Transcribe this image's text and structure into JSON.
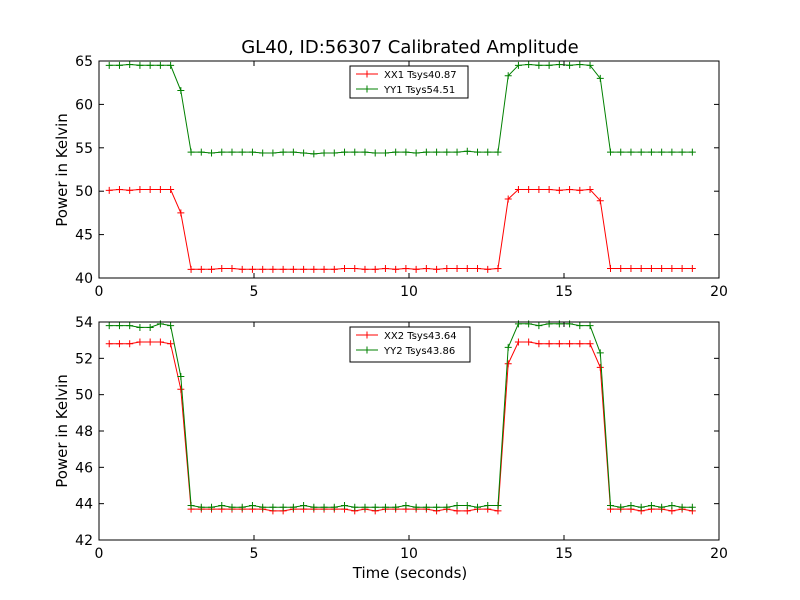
{
  "colors": {
    "xx": "#ff0000",
    "yy": "#008000",
    "axes": "#000000"
  },
  "chart_data": [
    {
      "type": "line",
      "title": "GL40, ID:56307 Calibrated Amplitude",
      "xlabel": "",
      "ylabel": "Power in Kelvin",
      "xlim": [
        0,
        20
      ],
      "ylim": [
        40,
        65
      ],
      "xticks": [
        "0",
        "5",
        "10",
        "15",
        "20"
      ],
      "yticks": [
        "40",
        "45",
        "50",
        "55",
        "60",
        "65"
      ],
      "legend_position": "top-center",
      "x": [
        0.33,
        0.66,
        0.99,
        1.32,
        1.65,
        1.98,
        2.31,
        2.64,
        2.97,
        3.3,
        3.63,
        3.96,
        4.29,
        4.62,
        4.95,
        5.28,
        5.61,
        5.94,
        6.27,
        6.6,
        6.93,
        7.26,
        7.59,
        7.92,
        8.25,
        8.58,
        8.91,
        9.24,
        9.57,
        9.9,
        10.23,
        10.56,
        10.89,
        11.22,
        11.55,
        11.88,
        12.21,
        12.54,
        12.87,
        13.2,
        13.53,
        13.86,
        14.19,
        14.52,
        14.85,
        15.18,
        15.51,
        15.84,
        16.17,
        16.5,
        16.83,
        17.16,
        17.49,
        17.82,
        18.15,
        18.48,
        18.81,
        19.14
      ],
      "series": [
        {
          "name": "XX1 Tsys40.87",
          "color": "#ff0000",
          "values": [
            50.1,
            50.2,
            50.1,
            50.2,
            50.2,
            50.2,
            50.2,
            47.5,
            41.0,
            41.0,
            41.0,
            41.1,
            41.1,
            41.0,
            41.0,
            41.0,
            41.0,
            41.0,
            41.0,
            41.0,
            41.0,
            41.0,
            41.0,
            41.1,
            41.1,
            41.0,
            41.0,
            41.1,
            41.0,
            41.1,
            41.0,
            41.1,
            41.0,
            41.1,
            41.1,
            41.1,
            41.1,
            41.0,
            41.1,
            49.1,
            50.2,
            50.2,
            50.2,
            50.2,
            50.1,
            50.2,
            50.1,
            50.2,
            48.9,
            41.1,
            41.1,
            41.1,
            41.1,
            41.1,
            41.1,
            41.1,
            41.1,
            41.1
          ]
        },
        {
          "name": "YY1 Tsys54.51",
          "color": "#008000",
          "values": [
            64.5,
            64.5,
            64.6,
            64.5,
            64.5,
            64.5,
            64.5,
            61.6,
            54.5,
            54.5,
            54.4,
            54.5,
            54.5,
            54.5,
            54.5,
            54.4,
            54.4,
            54.5,
            54.5,
            54.4,
            54.3,
            54.4,
            54.4,
            54.5,
            54.5,
            54.5,
            54.4,
            54.4,
            54.5,
            54.5,
            54.4,
            54.5,
            54.5,
            54.5,
            54.5,
            54.6,
            54.5,
            54.5,
            54.5,
            63.3,
            64.5,
            64.6,
            64.5,
            64.5,
            64.6,
            64.5,
            64.6,
            64.5,
            63.0,
            54.5,
            54.5,
            54.5,
            54.5,
            54.5,
            54.5,
            54.5,
            54.5,
            54.5
          ]
        }
      ]
    },
    {
      "type": "line",
      "title": "",
      "xlabel": "Time (seconds)",
      "ylabel": "Power in Kelvin",
      "xlim": [
        0,
        20
      ],
      "ylim": [
        42,
        54
      ],
      "xticks": [
        "0",
        "5",
        "10",
        "15",
        "20"
      ],
      "yticks": [
        "42",
        "44",
        "46",
        "48",
        "50",
        "52",
        "54"
      ],
      "legend_position": "top-center",
      "x": [
        0.33,
        0.66,
        0.99,
        1.32,
        1.65,
        1.98,
        2.31,
        2.64,
        2.97,
        3.3,
        3.63,
        3.96,
        4.29,
        4.62,
        4.95,
        5.28,
        5.61,
        5.94,
        6.27,
        6.6,
        6.93,
        7.26,
        7.59,
        7.92,
        8.25,
        8.58,
        8.91,
        9.24,
        9.57,
        9.9,
        10.23,
        10.56,
        10.89,
        11.22,
        11.55,
        11.88,
        12.21,
        12.54,
        12.87,
        13.2,
        13.53,
        13.86,
        14.19,
        14.52,
        14.85,
        15.18,
        15.51,
        15.84,
        16.17,
        16.5,
        16.83,
        17.16,
        17.49,
        17.82,
        18.15,
        18.48,
        18.81,
        19.14
      ],
      "series": [
        {
          "name": "XX2 Tsys43.64",
          "color": "#ff0000",
          "values": [
            52.8,
            52.8,
            52.8,
            52.9,
            52.9,
            52.9,
            52.8,
            50.3,
            43.7,
            43.7,
            43.7,
            43.7,
            43.7,
            43.7,
            43.7,
            43.7,
            43.6,
            43.6,
            43.7,
            43.7,
            43.7,
            43.7,
            43.7,
            43.7,
            43.6,
            43.7,
            43.6,
            43.7,
            43.7,
            43.7,
            43.7,
            43.7,
            43.6,
            43.7,
            43.6,
            43.6,
            43.7,
            43.7,
            43.6,
            51.7,
            52.9,
            52.9,
            52.8,
            52.8,
            52.8,
            52.8,
            52.8,
            52.8,
            51.5,
            43.7,
            43.7,
            43.7,
            43.6,
            43.7,
            43.7,
            43.6,
            43.7,
            43.6
          ]
        },
        {
          "name": "YY2 Tsys43.86",
          "color": "#008000",
          "values": [
            53.8,
            53.8,
            53.8,
            53.7,
            53.7,
            53.9,
            53.8,
            51.0,
            43.9,
            43.8,
            43.8,
            43.9,
            43.8,
            43.8,
            43.9,
            43.8,
            43.8,
            43.8,
            43.8,
            43.9,
            43.8,
            43.8,
            43.8,
            43.9,
            43.8,
            43.8,
            43.8,
            43.8,
            43.8,
            43.9,
            43.8,
            43.8,
            43.8,
            43.8,
            43.9,
            43.9,
            43.8,
            43.9,
            43.9,
            52.6,
            53.9,
            53.9,
            53.8,
            53.9,
            53.9,
            53.9,
            53.8,
            53.8,
            52.3,
            43.9,
            43.8,
            43.9,
            43.8,
            43.9,
            43.8,
            43.9,
            43.8,
            43.8
          ]
        }
      ]
    }
  ]
}
